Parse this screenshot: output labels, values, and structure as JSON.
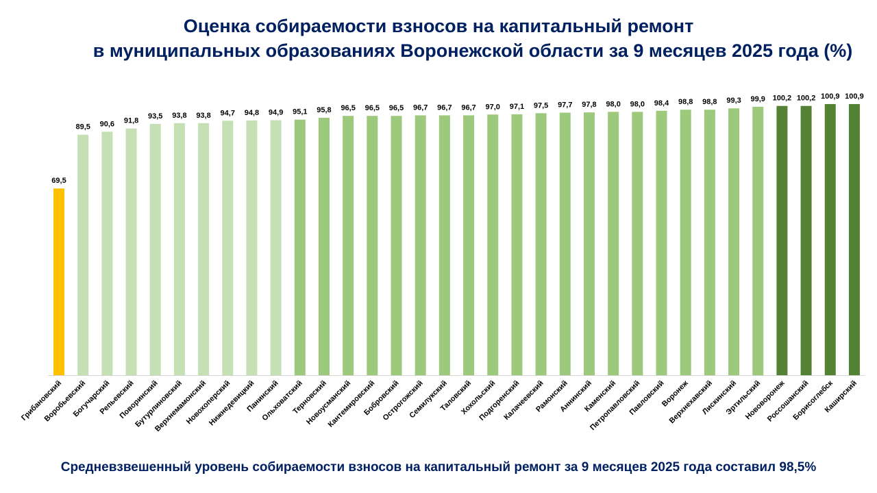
{
  "chart_data": {
    "type": "bar",
    "title": "Оценка собираемости взносов на капитальный ремонт",
    "subtitle": "в муниципальных образованиях Воронежской области за 9 месяцев 2025 года (%)",
    "ylim": [
      0,
      100.9
    ],
    "grid": false,
    "categories": [
      "Грибановский",
      "Воробьевский",
      "Богучарский",
      "Репьевский",
      "Поворинский",
      "Бутурлиновский",
      "Верхнемамонский",
      "Новохоперский",
      "Нижнедевицкий",
      "Панинский",
      "Ольховатский",
      "Терновский",
      "Новоусманский",
      "Кантемировский",
      "Бобровский",
      "Острогожский",
      "Семилукский",
      "Таловский",
      "Хохольский",
      "Подгоренский",
      "Калачеевский",
      "Рамонский",
      "Аннинский",
      "Каменский",
      "Петропавловский",
      "Павловский",
      "Воронеж",
      "Верхнехавский",
      "Лискинский",
      "Эртильский",
      "Нововоронеж",
      "Россошанский",
      "Борисоглебск",
      "Каширский"
    ],
    "values": [
      69.5,
      89.5,
      90.6,
      91.8,
      93.5,
      93.8,
      93.8,
      94.7,
      94.8,
      94.9,
      95.1,
      95.8,
      96.5,
      96.5,
      96.5,
      96.7,
      96.7,
      96.7,
      97.0,
      97.1,
      97.5,
      97.7,
      97.8,
      98.0,
      98.0,
      98.4,
      98.8,
      98.8,
      99.3,
      99.9,
      100.2,
      100.2,
      100.9,
      100.9
    ],
    "labels": [
      "69,5",
      "89,5",
      "90,6",
      "91,8",
      "93,5",
      "93,8",
      "93,8",
      "94,7",
      "94,8",
      "94,9",
      "95,1",
      "95,8",
      "96,5",
      "96,5",
      "96,5",
      "96,7",
      "96,7",
      "96,7",
      "97,0",
      "97,1",
      "97,5",
      "97,7",
      "97,8",
      "98,0",
      "98,0",
      "98,4",
      "98,8",
      "98,8",
      "99,3",
      "99,9",
      "100,2",
      "100,2",
      "100,9",
      "100,9"
    ],
    "color_groups": [
      1,
      2,
      2,
      2,
      2,
      2,
      2,
      2,
      2,
      2,
      3,
      3,
      3,
      3,
      3,
      3,
      3,
      3,
      3,
      3,
      3,
      3,
      3,
      3,
      3,
      3,
      3,
      3,
      3,
      3,
      4,
      4,
      4,
      4
    ],
    "colors": {
      "1": "#FFC000",
      "2": "#C5E0B4",
      "3": "#9DC97D",
      "4": "#548235"
    },
    "axis_color": "#D9D9D9",
    "text_color": "#000000"
  },
  "footer": "Средневзвешенный уровень собираемости взносов на капитальный ремонт за 9 месяцев 2025 года составил 98,5%"
}
